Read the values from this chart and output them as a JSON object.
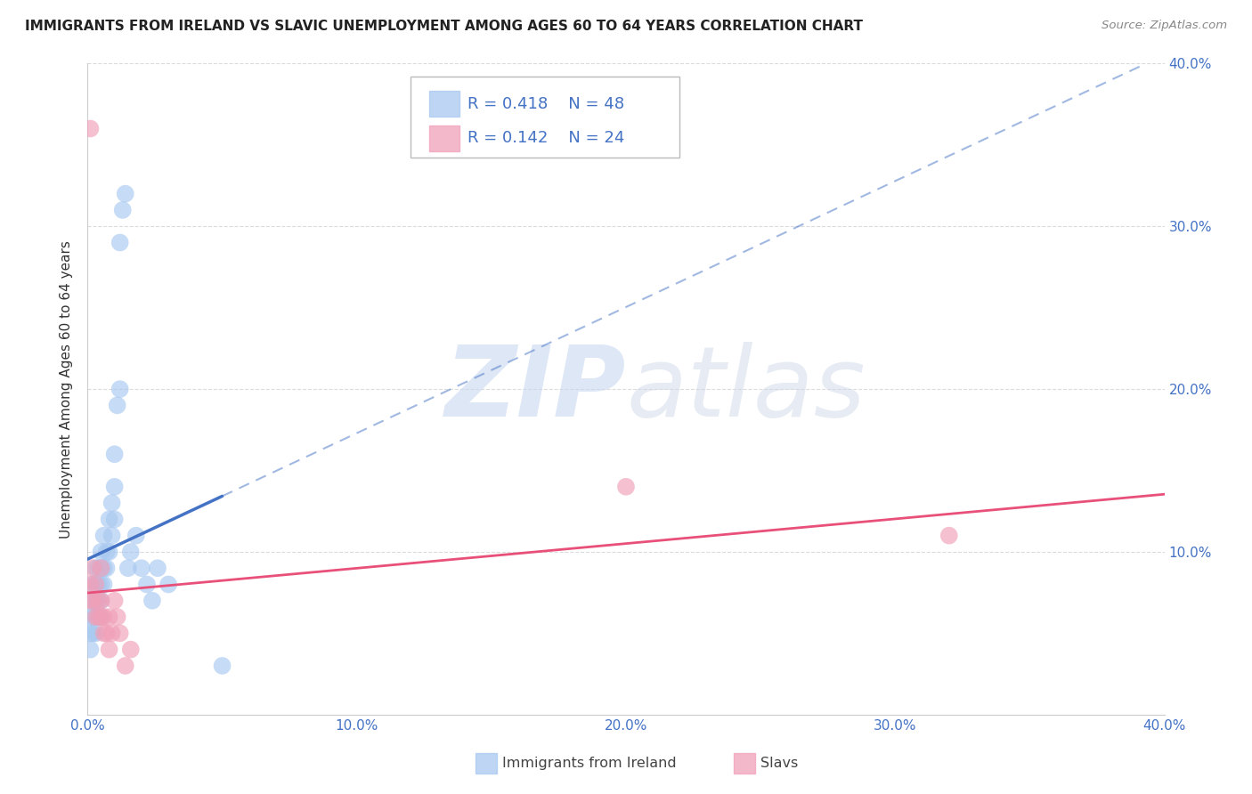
{
  "title": "IMMIGRANTS FROM IRELAND VS SLAVIC UNEMPLOYMENT AMONG AGES 60 TO 64 YEARS CORRELATION CHART",
  "source": "Source: ZipAtlas.com",
  "ylabel": "Unemployment Among Ages 60 to 64 years",
  "xlim": [
    0.0,
    0.4
  ],
  "ylim": [
    0.0,
    0.4
  ],
  "ireland_x": [
    0.001,
    0.001,
    0.001,
    0.001,
    0.002,
    0.002,
    0.002,
    0.002,
    0.003,
    0.003,
    0.003,
    0.003,
    0.003,
    0.004,
    0.004,
    0.004,
    0.004,
    0.005,
    0.005,
    0.005,
    0.005,
    0.005,
    0.006,
    0.006,
    0.006,
    0.007,
    0.007,
    0.008,
    0.008,
    0.009,
    0.009,
    0.01,
    0.01,
    0.01,
    0.011,
    0.012,
    0.012,
    0.013,
    0.014,
    0.015,
    0.016,
    0.018,
    0.02,
    0.022,
    0.024,
    0.026,
    0.03,
    0.05
  ],
  "ireland_y": [
    0.04,
    0.05,
    0.06,
    0.07,
    0.05,
    0.06,
    0.07,
    0.08,
    0.05,
    0.06,
    0.07,
    0.08,
    0.09,
    0.06,
    0.07,
    0.08,
    0.09,
    0.06,
    0.07,
    0.08,
    0.09,
    0.1,
    0.08,
    0.09,
    0.11,
    0.09,
    0.1,
    0.1,
    0.12,
    0.11,
    0.13,
    0.12,
    0.14,
    0.16,
    0.19,
    0.2,
    0.29,
    0.31,
    0.32,
    0.09,
    0.1,
    0.11,
    0.09,
    0.08,
    0.07,
    0.09,
    0.08,
    0.03
  ],
  "slavs_x": [
    0.001,
    0.001,
    0.002,
    0.002,
    0.003,
    0.003,
    0.004,
    0.004,
    0.005,
    0.005,
    0.005,
    0.006,
    0.006,
    0.007,
    0.008,
    0.008,
    0.009,
    0.01,
    0.011,
    0.012,
    0.014,
    0.016,
    0.2,
    0.32
  ],
  "slavs_y": [
    0.07,
    0.08,
    0.07,
    0.09,
    0.06,
    0.08,
    0.07,
    0.06,
    0.06,
    0.07,
    0.09,
    0.05,
    0.06,
    0.05,
    0.04,
    0.06,
    0.05,
    0.07,
    0.06,
    0.05,
    0.03,
    0.04,
    0.14,
    0.11
  ],
  "slavs_outlier_x": [
    0.001
  ],
  "slavs_outlier_y": [
    0.36
  ],
  "ireland_color": "#a8c8f0",
  "slavs_color": "#f0a0b8",
  "ireland_line_color": "#4472c4",
  "slavs_line_color": "#e8507a",
  "ireland_R": 0.418,
  "ireland_N": 48,
  "slavs_R": 0.142,
  "slavs_N": 24,
  "legend_text_color": "#4472c4",
  "watermark_zip_color": "#c8d8f0",
  "watermark_atlas_color": "#d0d8e8",
  "background_color": "#ffffff",
  "grid_color": "#cccccc",
  "axis_text_color": "#4472c4",
  "title_color": "#222222",
  "source_color": "#888888",
  "ylabel_color": "#333333",
  "xticks": [
    0.0,
    0.1,
    0.2,
    0.3,
    0.4
  ],
  "xtick_labels": [
    "0.0%",
    "10.0%",
    "20.0%",
    "30.0%",
    "40.0%"
  ],
  "yticks_right": [
    0.1,
    0.2,
    0.3,
    0.4
  ],
  "ytick_right_labels": [
    "10.0%",
    "20.0%",
    "30.0%",
    "40.0%"
  ]
}
